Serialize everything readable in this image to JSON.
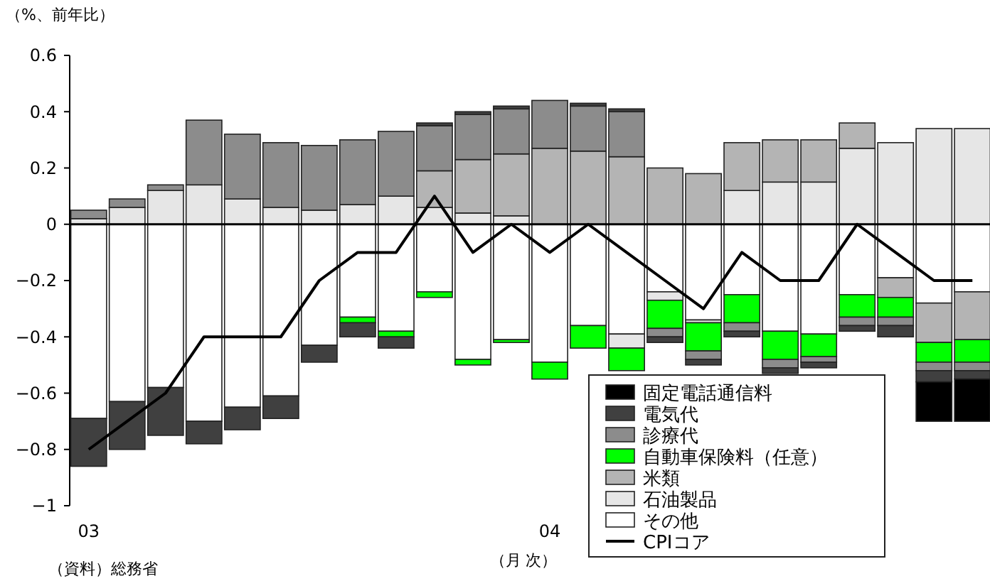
{
  "chart_data": {
    "type": "bar",
    "stacked": true,
    "ylabel": "（%、前年比）",
    "xlabel": "（月 次）",
    "annotations": [
      "（資料）総務省"
    ],
    "categories": [
      "03",
      null,
      null,
      null,
      null,
      null,
      null,
      null,
      null,
      null,
      null,
      null,
      "04",
      null,
      null,
      null,
      null,
      null,
      null,
      null,
      null,
      null,
      null,
      null
    ],
    "ylim": [
      -1,
      0.6
    ],
    "yticks": [
      {
        "value": -1,
        "label": "−1"
      },
      {
        "value": -0.8,
        "label": "−0.8"
      },
      {
        "value": -0.6,
        "label": "−0.6"
      },
      {
        "value": -0.4,
        "label": "−0.4"
      },
      {
        "value": -0.2,
        "label": "−0.2"
      },
      0,
      0.2,
      0.4,
      0.6
    ],
    "legend": "bottom right",
    "grid": false,
    "ref_lines": [
      {
        "axis": "y",
        "value": 0,
        "color": "#000000"
      }
    ],
    "series": [
      {
        "name": "その他",
        "color": "#ffffff",
        "values": [
          -0.69,
          -0.63,
          -0.58,
          -0.7,
          -0.65,
          -0.61,
          -0.43,
          -0.33,
          -0.38,
          -0.24,
          -0.48,
          -0.41,
          -0.49,
          -0.36,
          -0.39,
          -0.24,
          -0.34,
          -0.25,
          -0.38,
          -0.39,
          -0.25,
          -0.19,
          -0.28,
          -0.24
        ]
      },
      {
        "name": "石油製品",
        "color": "#e6e6e6",
        "values": [
          0.02,
          0.06,
          0.12,
          0.14,
          0.09,
          0.06,
          0.05,
          0.07,
          0.1,
          0.06,
          0.04,
          0.03,
          null,
          null,
          -0.05,
          -0.03,
          -0.01,
          0.12,
          0.15,
          0.15,
          0.27,
          0.29,
          0.34,
          0.34
        ]
      },
      {
        "name": "米類",
        "color": "#b4b4b4",
        "values": [
          null,
          null,
          null,
          null,
          null,
          null,
          null,
          null,
          null,
          0.13,
          0.19,
          0.22,
          0.27,
          0.26,
          0.24,
          0.2,
          0.18,
          0.17,
          0.15,
          0.15,
          0.09,
          -0.07,
          -0.14,
          -0.17
        ]
      },
      {
        "name": "自動車保険料（任意）",
        "color": "#00ff00",
        "values": [
          null,
          null,
          null,
          null,
          null,
          null,
          null,
          -0.02,
          -0.02,
          -0.02,
          -0.02,
          -0.01,
          -0.06,
          -0.08,
          -0.08,
          -0.1,
          -0.1,
          -0.1,
          -0.1,
          -0.08,
          -0.08,
          -0.07,
          -0.07,
          -0.08
        ]
      },
      {
        "name": "診療代",
        "color": "#8c8c8c",
        "values": [
          0.03,
          0.03,
          0.02,
          0.23,
          0.23,
          0.23,
          0.23,
          0.23,
          0.23,
          0.16,
          0.16,
          0.16,
          0.17,
          0.16,
          0.16,
          -0.03,
          -0.03,
          -0.03,
          -0.03,
          -0.02,
          -0.03,
          -0.03,
          -0.03,
          -0.03
        ]
      },
      {
        "name": "電気代",
        "color": "#404040",
        "values": [
          -0.17,
          -0.17,
          -0.17,
          -0.08,
          -0.08,
          -0.08,
          -0.06,
          -0.05,
          -0.04,
          0.01,
          0.01,
          0.01,
          null,
          0.01,
          0.01,
          -0.02,
          -0.02,
          -0.02,
          -0.02,
          -0.02,
          -0.02,
          -0.04,
          -0.04,
          -0.03
        ]
      },
      {
        "name": "固定電話通信料",
        "color": "#000000",
        "values": [
          null,
          null,
          null,
          null,
          null,
          null,
          null,
          null,
          null,
          null,
          null,
          null,
          null,
          null,
          null,
          null,
          null,
          null,
          null,
          null,
          null,
          null,
          -0.14,
          -0.15
        ]
      },
      {
        "name": "CPIコア",
        "type": "line",
        "color": "#000000",
        "values": [
          -0.8,
          -0.7,
          -0.6,
          -0.4,
          -0.4,
          -0.4,
          -0.2,
          -0.1,
          -0.1,
          0.1,
          -0.1,
          0,
          -0.1,
          0,
          -0.1,
          -0.2,
          -0.3,
          -0.1,
          -0.2,
          -0.2,
          0,
          -0.1,
          -0.2,
          -0.2
        ]
      }
    ]
  }
}
